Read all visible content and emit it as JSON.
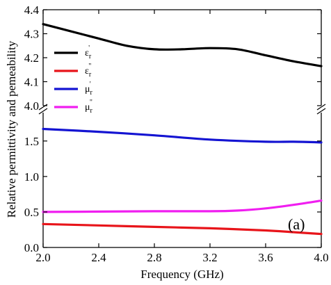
{
  "chart_data": {
    "type": "line",
    "title": "",
    "xlabel": "Frequency (GHz)",
    "ylabel": "Relative permittivity and pemeability",
    "panel_label": "(a)",
    "x_ticks": [
      "2.0",
      "2.4",
      "2.8",
      "3.2",
      "3.6",
      "4.0"
    ],
    "xlim": [
      2.0,
      4.0
    ],
    "broken_y_axis": true,
    "upper_ylim": [
      4.0,
      4.4
    ],
    "upper_y_ticks": [
      "4.0",
      "4.1",
      "4.2",
      "4.3",
      "4.4"
    ],
    "lower_ylim": [
      0.0,
      1.9
    ],
    "lower_y_ticks": [
      "0.0",
      "0.5",
      "1.0",
      "1.5"
    ],
    "legend_position": "upper-left",
    "legend": [
      {
        "symbol": "ε",
        "sub": "r",
        "sup": "'",
        "color": "#000000"
      },
      {
        "symbol": "ε",
        "sub": "r",
        "sup": "\"",
        "color": "#e8141a"
      },
      {
        "symbol": "μ",
        "sub": "r",
        "sup": "'",
        "color": "#1414d2"
      },
      {
        "symbol": "μ",
        "sub": "r",
        "sup": "\"",
        "color": "#f01ef0"
      }
    ],
    "series": [
      {
        "color": "#000000",
        "panel": "upper",
        "x": [
          2.0,
          2.2,
          2.4,
          2.6,
          2.8,
          3.0,
          3.2,
          3.4,
          3.6,
          3.8,
          4.0
        ],
        "y": [
          4.34,
          4.31,
          4.28,
          4.25,
          4.235,
          4.235,
          4.24,
          4.235,
          4.21,
          4.185,
          4.165
        ]
      },
      {
        "color": "#e8141a",
        "panel": "lower",
        "x": [
          2.0,
          2.4,
          2.8,
          3.2,
          3.6,
          3.8,
          4.0
        ],
        "y": [
          0.33,
          0.31,
          0.29,
          0.27,
          0.24,
          0.215,
          0.19
        ]
      },
      {
        "color": "#1414d2",
        "panel": "lower",
        "x": [
          2.0,
          2.4,
          2.8,
          3.2,
          3.6,
          3.8,
          4.0
        ],
        "y": [
          1.67,
          1.63,
          1.58,
          1.52,
          1.49,
          1.49,
          1.48
        ]
      },
      {
        "color": "#f01ef0",
        "panel": "lower",
        "x": [
          2.0,
          2.4,
          2.8,
          3.2,
          3.4,
          3.6,
          3.8,
          4.0
        ],
        "y": [
          0.5,
          0.505,
          0.51,
          0.51,
          0.52,
          0.55,
          0.6,
          0.66
        ]
      }
    ]
  }
}
